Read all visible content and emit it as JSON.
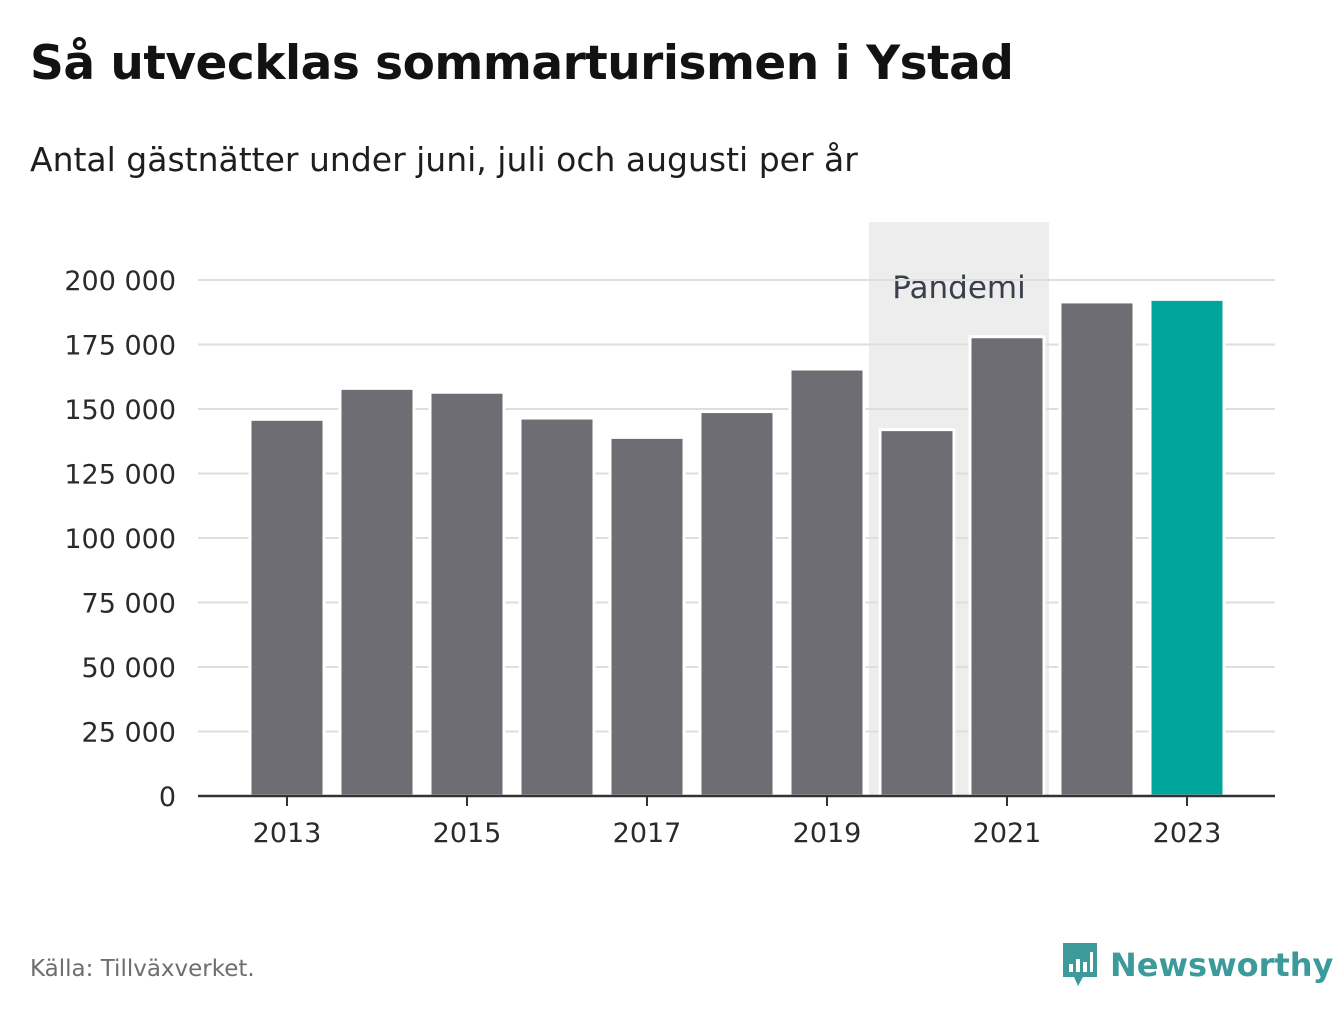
{
  "title": "Så utvecklas sommarturismen i Ystad",
  "subtitle": "Antal gästnätter under juni, juli och augusti per år",
  "source": "Källa: Tillväxverket.",
  "brand": {
    "name": "Newsworthy",
    "icon": "newsworthy-logo-icon",
    "color": "#3d9a9b"
  },
  "chart_data": {
    "type": "bar",
    "categories": [
      "2013",
      "2014",
      "2015",
      "2016",
      "2017",
      "2018",
      "2019",
      "2020",
      "2021",
      "2022",
      "2023"
    ],
    "values": [
      146000,
      158000,
      156500,
      146500,
      139000,
      149000,
      165500,
      142000,
      178000,
      191500,
      192500
    ],
    "x_tick_labels": [
      "2013",
      "2015",
      "2017",
      "2019",
      "2021",
      "2023"
    ],
    "y_ticks": [
      0,
      25000,
      50000,
      75000,
      100000,
      125000,
      150000,
      175000,
      200000
    ],
    "y_tick_labels": [
      "0",
      "25 000",
      "50 000",
      "75 000",
      "100 000",
      "125 000",
      "150 000",
      "175 000",
      "200 000"
    ],
    "ylim": [
      0,
      200000
    ],
    "grid": true,
    "bar_color": "#6e6d73",
    "highlight_color": "#00a59b",
    "highlight_category": "2023",
    "annotation": {
      "label": "Pandemi",
      "from": "2020",
      "to": "2021",
      "color": "#ededed"
    }
  }
}
